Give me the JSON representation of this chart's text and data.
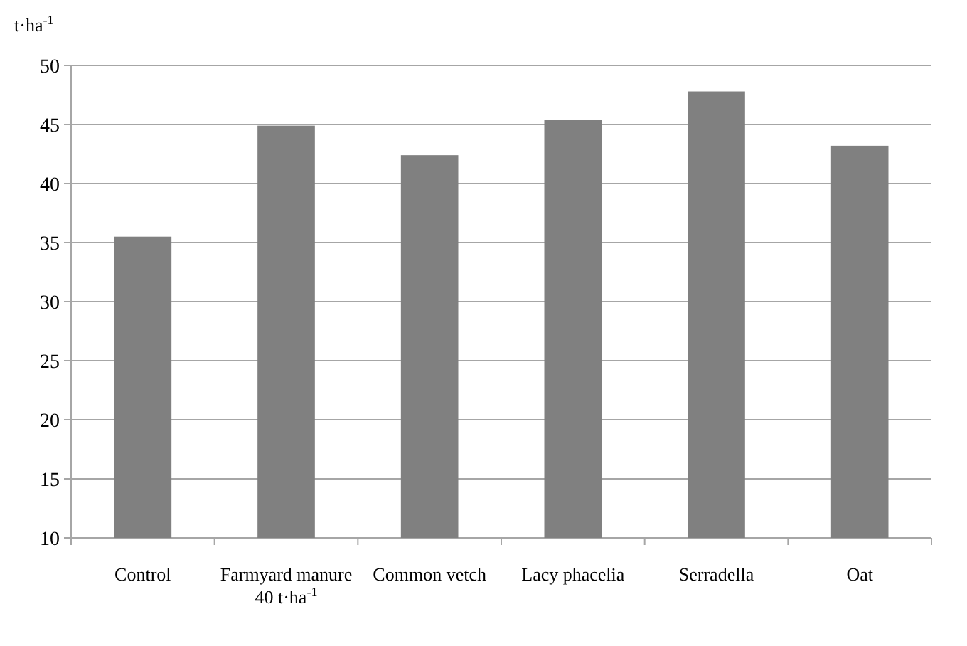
{
  "chart_data": {
    "type": "bar",
    "ylabel": "t·ha$^{-1}$",
    "categories": [
      "Control",
      "Farmyard manure 40 t·ha$^{-1}$",
      "Common vetch",
      "Lacy phacelia",
      "Serradella",
      "Oat"
    ],
    "values": [
      35.5,
      44.9,
      42.4,
      45.4,
      47.8,
      43.2
    ],
    "color": "#808080",
    "ylim": [
      10,
      50
    ],
    "yticks": [
      10,
      15,
      20,
      25,
      30,
      35,
      40,
      45,
      50
    ],
    "grid": "y"
  }
}
